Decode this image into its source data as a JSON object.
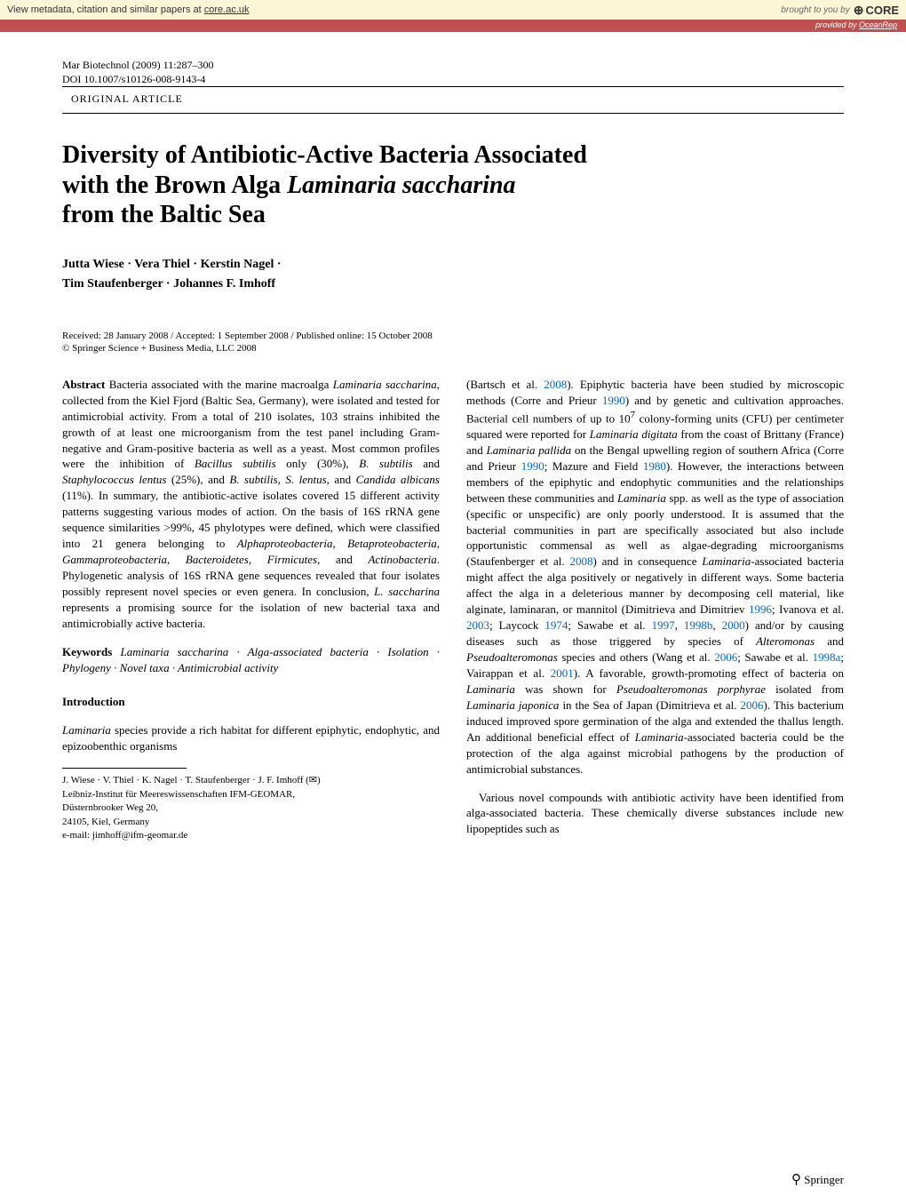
{
  "core_banner": {
    "left_prefix": "View metadata, citation and similar papers at ",
    "left_link": "core.ac.uk",
    "brought": "brought to you by",
    "logo": "CORE",
    "provided_prefix": "provided by ",
    "provided_link": "OceanRep"
  },
  "journal": {
    "citation": "Mar Biotechnol (2009) 11:287–300",
    "doi": "DOI 10.1007/s10126-008-9143-4",
    "article_type": "ORIGINAL ARTICLE"
  },
  "title": {
    "line1": "Diversity of Antibiotic-Active Bacteria Associated",
    "line2_pre": "with the Brown Alga ",
    "line2_italic": "Laminaria saccharina",
    "line3": "from the Baltic Sea"
  },
  "authors": {
    "line1": "Jutta Wiese · Vera Thiel · Kerstin Nagel ·",
    "line2": "Tim Staufenberger · Johannes F. Imhoff"
  },
  "dates": "Received: 28 January 2008 / Accepted: 1 September 2008 / Published online: 15 October 2008",
  "copyright": "© Springer Science + Business Media, LLC 2008",
  "abstract": {
    "label": "Abstract",
    "text_parts": [
      " Bacteria associated with the marine macroalga ",
      "Laminaria saccharina",
      ", collected from the Kiel Fjord (Baltic Sea, Germany), were isolated and tested for antimicrobial activity. From a total of 210 isolates, 103 strains inhibited the growth of at least one microorganism from the test panel including Gram-negative and Gram-positive bacteria as well as a yeast. Most common profiles were the inhibition of ",
      "Bacillus subtilis",
      " only (30%), ",
      "B. subtilis",
      " and ",
      "Staphylococcus lentus",
      " (25%), and ",
      "B. subtilis",
      ", ",
      "S. lentus",
      ", and ",
      "Candida albicans",
      " (11%). In summary, the antibiotic-active isolates covered 15 different activity patterns suggesting various modes of action. On the basis of 16S rRNA gene sequence similarities >99%, 45 phylotypes were defined, which were classified into 21 genera belonging to ",
      "Alphaproteobacteria",
      ", ",
      "Betaproteobacteria",
      ", ",
      "Gammaproteobacteria",
      ", ",
      "Bacteroidetes",
      ", ",
      "Firmicutes",
      ", and ",
      "Actinobacteria",
      ". Phylogenetic analysis of 16S rRNA gene sequences revealed that four isolates possibly represent novel species or even genera. In conclusion, ",
      "L. saccharina",
      " represents a promising source for the isolation of new bacterial taxa and antimicrobially active bacteria."
    ]
  },
  "keywords": {
    "label": "Keywords",
    "text": " Laminaria saccharina · Alga-associated bacteria · Isolation · Phylogeny · Novel taxa · Antimicrobial activity"
  },
  "intro_heading": "Introduction",
  "intro_para": "Laminaria species provide a rich habitat for different epiphytic, endophytic, and epizoobenthic organisms",
  "affiliation": {
    "authors": "J. Wiese · V. Thiel · K. Nagel · T. Staufenberger · J. F. Imhoff (✉)",
    "line1": "Leibniz-Institut für Meereswissenschaften IFM-GEOMAR,",
    "line2": "Düsternbrooker Weg 20,",
    "line3": "24105, Kiel, Germany",
    "email": "e-mail: jimhoff@ifm-geomar.de"
  },
  "col2": {
    "para1_parts": [
      "(Bartsch et al. ",
      "2008",
      "). Epiphytic bacteria have been studied by microscopic methods (Corre and Prieur ",
      "1990",
      ") and by genetic and cultivation approaches. Bacterial cell numbers of up to 10",
      "7",
      " colony-forming units (CFU) per centimeter squared were reported for ",
      "Laminaria digitata",
      " from the coast of Brittany (France) and ",
      "Laminaria pallida",
      " on the Bengal upwelling region of southern Africa (Corre and Prieur ",
      "1990",
      "; Mazure and Field ",
      "1980",
      "). However, the interactions between members of the epiphytic and endophytic communities and the relationships between these communities and ",
      "Laminaria",
      " spp. as well as the type of association (specific or unspecific) are only poorly understood. It is assumed that the bacterial communities in part are specifically associated but also include opportunistic commensal as well as algae-degrading microorganisms (Staufenberger et al. ",
      "2008",
      ") and in consequence ",
      "Laminaria",
      "-associated bacteria might affect the alga positively or negatively in different ways. Some bacteria affect the alga in a deleterious manner by decomposing cell material, like alginate, laminaran, or mannitol (Dimitrieva and Dimitriev ",
      "1996",
      "; Ivanova et al. ",
      "2003",
      "; Laycock ",
      "1974",
      "; Sawabe et al. ",
      "1997",
      ", ",
      "1998b",
      ", ",
      "2000",
      ") and/or by causing diseases such as those triggered by species of ",
      "Alteromonas",
      " and ",
      "Pseudoalteromonas",
      " species and others (Wang et al. ",
      "2006",
      "; Sawabe et al. ",
      "1998a",
      "; Vairappan et al. ",
      "2001",
      "). A favorable, growth-promoting effect of bacteria on ",
      "Laminaria",
      " was shown for ",
      "Pseudoalteromonas porphyrae",
      " isolated from ",
      "Laminaria japonica",
      " in the Sea of Japan (Dimitrieva et al. ",
      "2006",
      "). This bacterium induced improved spore germination of the alga and extended the thallus length. An additional beneficial effect of ",
      "Laminaria",
      "-associated bacteria could be the protection of the alga against microbial pathogens by the production of antimicrobial substances."
    ],
    "para2": "Various novel compounds with antibiotic activity have been identified from alga-associated bacteria. These chemically diverse substances include new lipopeptides such as"
  },
  "footer_logo": "Springer"
}
